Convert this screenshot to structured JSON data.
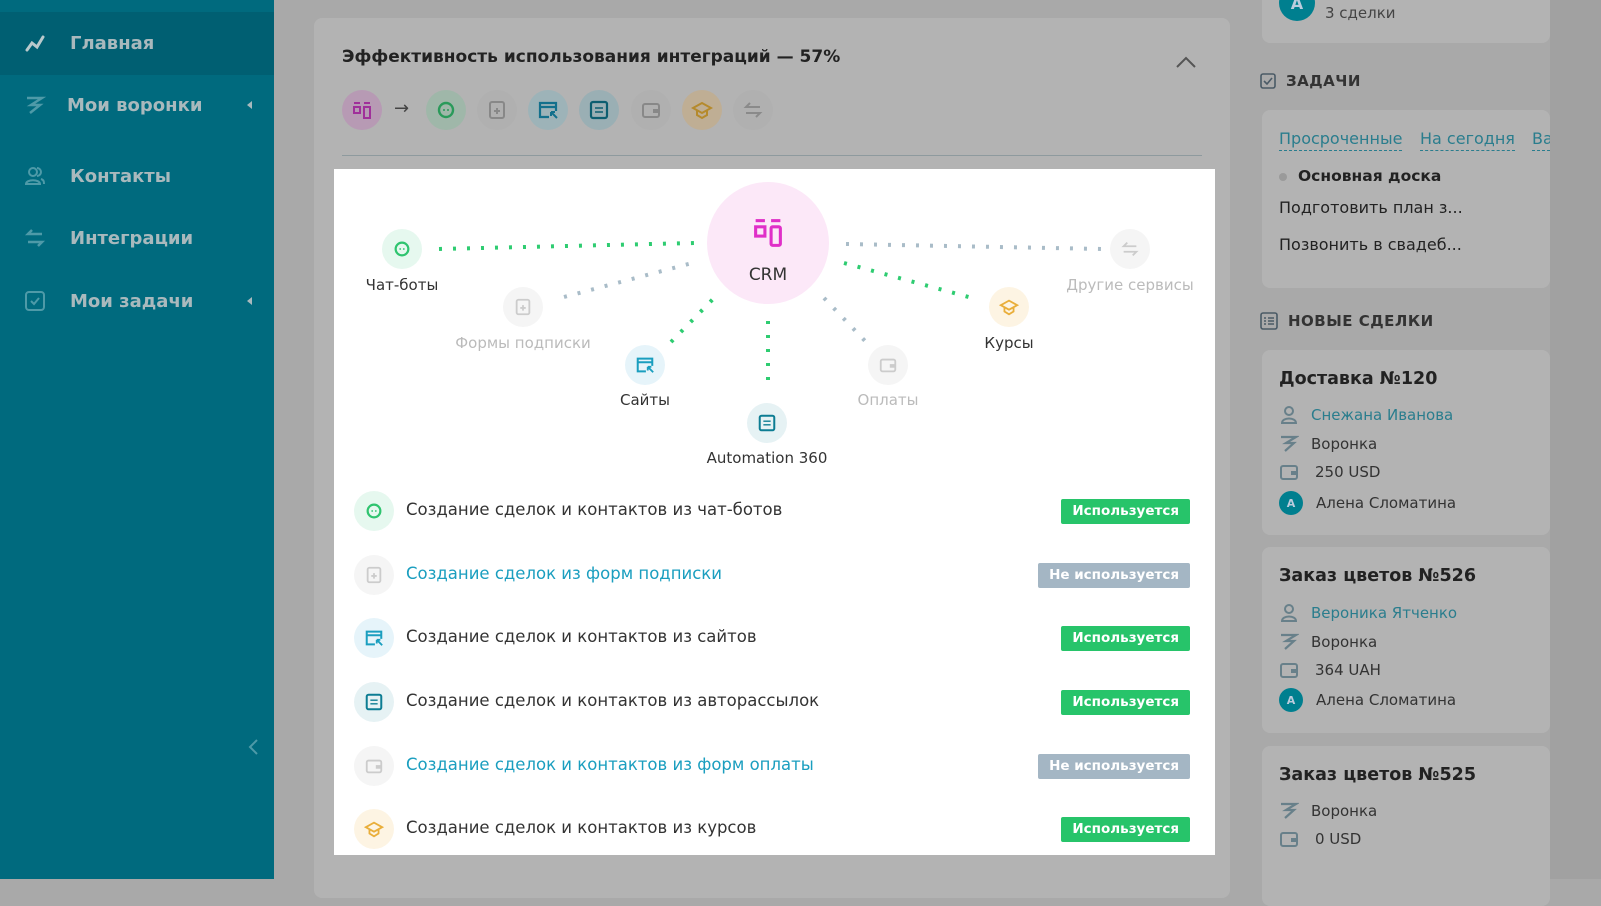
{
  "sidebar": {
    "items": [
      {
        "label": "Главная",
        "icon": "chart-line-icon",
        "active": true
      },
      {
        "label": "Мои воронки",
        "icon": "funnel-icon",
        "has_submenu": true
      },
      {
        "label": "Контакты",
        "icon": "contacts-icon"
      },
      {
        "label": "Интеграции",
        "icon": "integrations-icon"
      },
      {
        "label": "Мои задачи",
        "icon": "tasks-icon",
        "has_submenu": true
      }
    ]
  },
  "main": {
    "title": "Эффективность использования интеграций — 57%",
    "diagram": {
      "center": "CRM",
      "nodes": [
        {
          "label": "Чат-боты",
          "active": true
        },
        {
          "label": "Формы подписки",
          "active": false
        },
        {
          "label": "Сайты",
          "active": true
        },
        {
          "label": "Automation 360",
          "active": true
        },
        {
          "label": "Оплаты",
          "active": false
        },
        {
          "label": "Курсы",
          "active": true
        },
        {
          "label": "Другие сервисы",
          "active": false
        }
      ]
    },
    "rows": [
      {
        "text": "Создание сделок и контактов из чат-ботов",
        "status": "Используется",
        "used": true
      },
      {
        "text": "Создание сделок из форм подписки",
        "status": "Не используется",
        "used": false
      },
      {
        "text": "Создание сделок и контактов из сайтов",
        "status": "Используется",
        "used": true
      },
      {
        "text": "Создание сделок и контактов из авторассылок",
        "status": "Используется",
        "used": true
      },
      {
        "text": "Создание сделок и контактов из форм оплаты",
        "status": "Не используется",
        "used": false
      },
      {
        "text": "Создание сделок и контактов из курсов",
        "status": "Используется",
        "used": true
      }
    ]
  },
  "right": {
    "top_card": {
      "avatar": "А",
      "text": "3 сделки"
    },
    "tasks": {
      "header": "ЗАДАЧИ",
      "tabs": [
        "Просроченные",
        "На сегодня",
        "Ва"
      ],
      "board": "Основная доска",
      "items": [
        "Подготовить план з...",
        "Позвонить в свадеб..."
      ]
    },
    "deals": {
      "header": "НОВЫЕ СДЕЛКИ",
      "items": [
        {
          "title": "Доставка №120",
          "contact": "Снежана Иванова",
          "funnel": "Воронка",
          "amount": "250 USD",
          "owner": "Алена Сломатина",
          "owner_initial": "А"
        },
        {
          "title": "Заказ цветов №526",
          "contact": "Вероника Ятченко",
          "funnel": "Воронка",
          "amount": "364 UAH",
          "owner": "Алена Сломатина",
          "owner_initial": "А"
        },
        {
          "title": "Заказ цветов №525",
          "funnel": "Воронка",
          "amount": "0 USD"
        }
      ]
    }
  },
  "colors": {
    "sidebar": "#006a7e",
    "used": "#27c46a",
    "unused": "#a4b6c4",
    "link": "#1a9ebf",
    "crm": "#e02fc8"
  }
}
